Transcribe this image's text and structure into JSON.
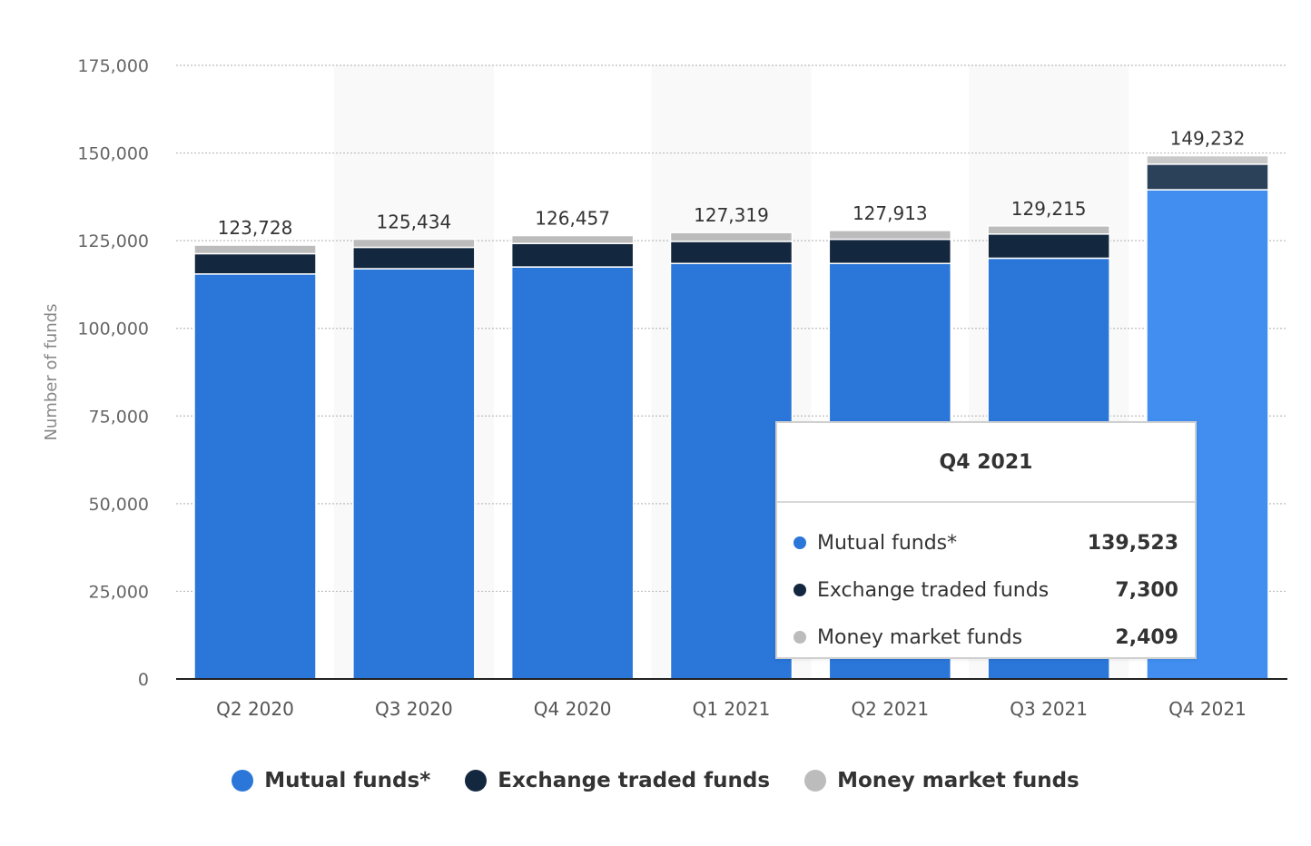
{
  "chart_data": {
    "type": "bar",
    "stacked": true,
    "categories": [
      "Q2 2020",
      "Q3 2020",
      "Q4 2020",
      "Q1 2021",
      "Q2 2021",
      "Q3 2021",
      "Q4 2021"
    ],
    "series": [
      {
        "name": "Mutual funds*",
        "color": "#2a76d9",
        "values": [
          115500,
          117000,
          117500,
          118500,
          118500,
          120000,
          139523
        ]
      },
      {
        "name": "Exchange traded funds",
        "color": "#13273f",
        "values": [
          5800,
          6100,
          6700,
          6300,
          6900,
          6900,
          7300
        ]
      },
      {
        "name": "Money market funds",
        "color": "#bcbcbc",
        "values": [
          2428,
          2334,
          2257,
          2519,
          2513,
          2315,
          2409
        ]
      }
    ],
    "totals": [
      "123,728",
      "125,434",
      "126,457",
      "127,319",
      "127,913",
      "129,215",
      "149,232"
    ],
    "ylabel": "Number of funds",
    "ylim": [
      0,
      175000
    ],
    "yticks": [
      0,
      25000,
      50000,
      75000,
      100000,
      125000,
      150000,
      175000
    ],
    "ytick_labels": [
      "0",
      "25,000",
      "50,000",
      "75,000",
      "100,000",
      "125,000",
      "150,000",
      "175,000"
    ],
    "grid": true,
    "legend_position": "bottom-center",
    "highlighted_category": "Q4 2021"
  },
  "tooltip": {
    "title": "Q4 2021",
    "rows": [
      {
        "name": "Mutual funds*",
        "value": "139,523",
        "color": "#2a76d9"
      },
      {
        "name": "Exchange traded funds",
        "value": "7,300",
        "color": "#13273f"
      },
      {
        "name": "Money market funds",
        "value": "2,409",
        "color": "#bcbcbc"
      }
    ]
  }
}
